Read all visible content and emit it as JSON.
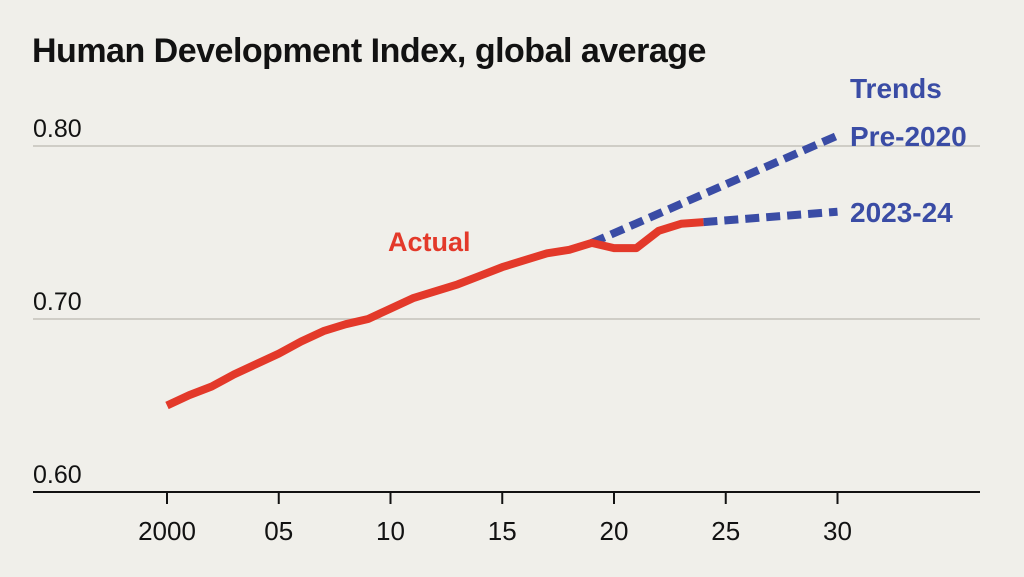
{
  "chart_data": {
    "type": "line",
    "title": "Human Development Index, global average",
    "xlabel": "",
    "ylabel": "",
    "xlim": [
      1990,
      2040
    ],
    "ylim": [
      0.6,
      0.82
    ],
    "grid": true,
    "y_ticks": [
      {
        "value": 0.6,
        "label": "0.60"
      },
      {
        "value": 0.7,
        "label": "0.70"
      },
      {
        "value": 0.8,
        "label": "0.80"
      }
    ],
    "x_ticks": [
      {
        "value": 2000,
        "label": "2000"
      },
      {
        "value": 2005,
        "label": "05"
      },
      {
        "value": 2010,
        "label": "10"
      },
      {
        "value": 2015,
        "label": "15"
      },
      {
        "value": 2020,
        "label": "20"
      },
      {
        "value": 2025,
        "label": "25"
      },
      {
        "value": 2030,
        "label": "30"
      }
    ],
    "group_label": "Trends",
    "series": [
      {
        "name": "Actual",
        "color": "#e3392a",
        "style": "solid",
        "x": [
          2000,
          2001,
          2002,
          2003,
          2004,
          2005,
          2006,
          2007,
          2008,
          2009,
          2010,
          2011,
          2012,
          2013,
          2014,
          2015,
          2016,
          2017,
          2018,
          2019,
          2020,
          2021,
          2022,
          2023,
          2024
        ],
        "y": [
          0.65,
          0.656,
          0.661,
          0.668,
          0.674,
          0.68,
          0.687,
          0.693,
          0.697,
          0.7,
          0.706,
          0.712,
          0.716,
          0.72,
          0.725,
          0.73,
          0.734,
          0.738,
          0.74,
          0.744,
          0.741,
          0.741,
          0.751,
          0.755,
          0.756
        ]
      },
      {
        "name": "Pre-2020",
        "color": "#3a4ca5",
        "style": "dashed",
        "x": [
          2019,
          2030
        ],
        "y": [
          0.744,
          0.806
        ]
      },
      {
        "name": "2023-24",
        "color": "#3a4ca5",
        "style": "dashed",
        "x": [
          2024,
          2030
        ],
        "y": [
          0.756,
          0.762
        ]
      }
    ]
  }
}
